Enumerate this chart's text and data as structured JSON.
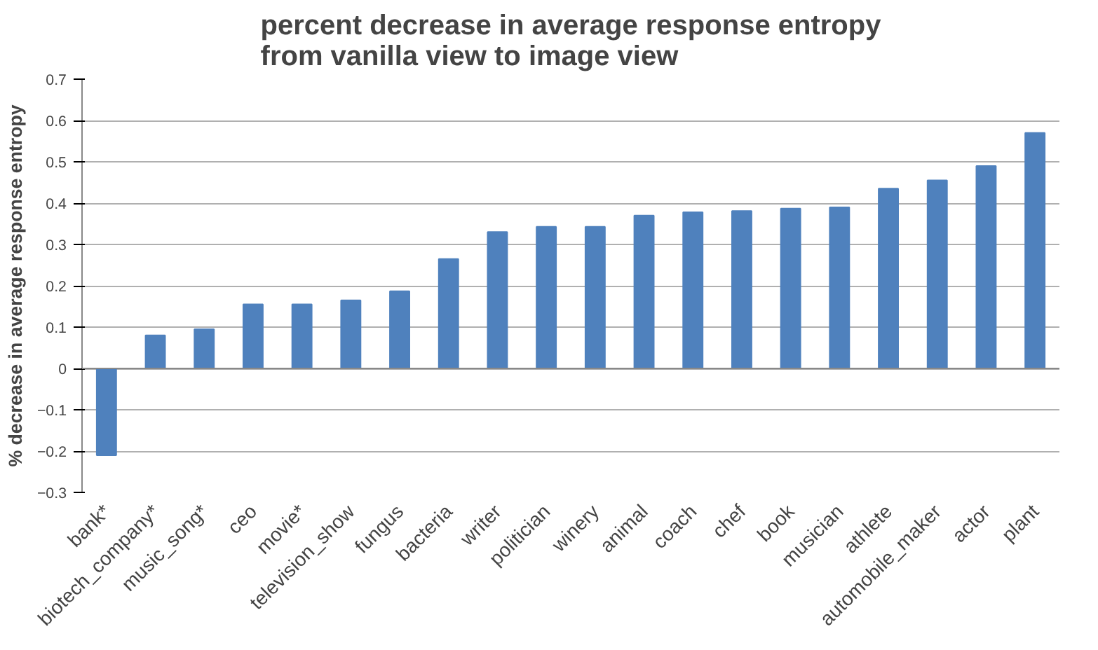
{
  "chart_data": {
    "type": "bar",
    "title": "percent decrease in average response entropy\nfrom vanilla view to image view",
    "ylabel": "% decrease in average response entropy",
    "categories": [
      "bank*",
      "biotech_company*",
      "music_song*",
      "ceo",
      "movie*",
      "television_show",
      "fungus",
      "bacteria",
      "writer",
      "politician",
      "winery",
      "animal",
      "coach",
      "chef",
      "book",
      "musician",
      "athlete",
      "automobile_maker",
      "actor",
      "plant"
    ],
    "values": [
      -0.21,
      0.08,
      0.095,
      0.155,
      0.155,
      0.165,
      0.187,
      0.265,
      0.33,
      0.343,
      0.343,
      0.37,
      0.378,
      0.381,
      0.387,
      0.39,
      0.435,
      0.455,
      0.49,
      0.57
    ],
    "color": "#4f81bd",
    "ylim": [
      -0.3,
      0.7
    ],
    "yticks": [
      -0.3,
      -0.2,
      -0.1,
      0,
      0.1,
      0.2,
      0.3,
      0.4,
      0.5,
      0.6,
      0.7
    ],
    "grid": "y"
  }
}
